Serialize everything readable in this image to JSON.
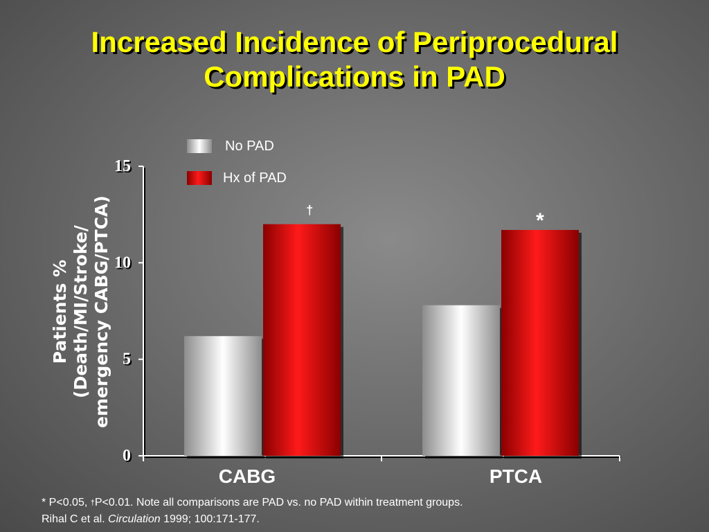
{
  "title_line1": "Increased Incidence of Periprocedural",
  "title_line2": "Complications in PAD",
  "footnote": {
    "star": "*",
    "part1": " P<0.05, ",
    "dagger": "†",
    "part2": "P<0.01. Note all comparisons are PAD vs. no PAD within treatment groups.",
    "citation_pre": "Rihal C et al. ",
    "citation_journal": "Circulation",
    "citation_post": " 1999; 100:171-177."
  },
  "colors": {
    "no_pad": "#ffffff",
    "hx_pad": "#ff1a1a",
    "title": "#ffff00"
  },
  "chart_data": {
    "type": "bar",
    "categories": [
      "CABG",
      "PTCA"
    ],
    "series": [
      {
        "name": "No PAD",
        "values": [
          6.2,
          7.8
        ]
      },
      {
        "name": "Hx of PAD",
        "values": [
          12.0,
          11.7
        ]
      }
    ],
    "ylabel_lines": [
      "Patients %",
      "(Death/MI/Stroke/",
      "emergency CABG/PTCA)"
    ],
    "yticks": [
      0,
      5,
      10,
      15
    ],
    "ylim": [
      0,
      15
    ],
    "annotations": [
      {
        "category": "CABG",
        "series": "Hx of PAD",
        "text": "†"
      },
      {
        "category": "PTCA",
        "series": "Hx of PAD",
        "text": "*"
      }
    ],
    "legend_position": "top-left",
    "grid": false
  }
}
